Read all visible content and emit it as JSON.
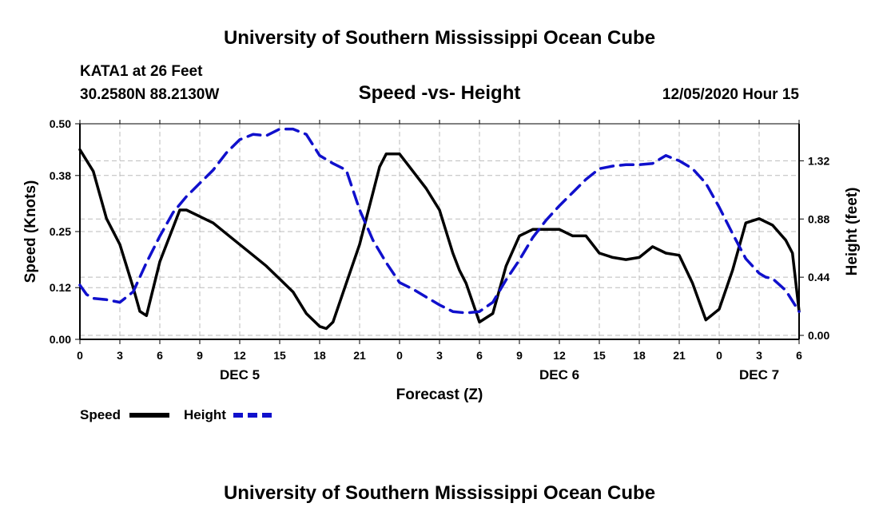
{
  "header": {
    "title_top": "University of Southern Mississippi Ocean Cube",
    "station": "KATA1 at 26 Feet",
    "coords": "30.2580N 88.2130W",
    "chart_title": "Speed -vs- Height",
    "datetime": "12/05/2020 Hour 15",
    "title_bottom": "University of Southern Mississippi Ocean Cube"
  },
  "colors": {
    "speed": "#000000",
    "height": "#1010cc",
    "grid": "#bbbbbb"
  },
  "chart_data": {
    "type": "line",
    "title": "Speed -vs- Height",
    "xlabel": "Forecast (Z)",
    "ylabel": "Speed (Knots)",
    "ylabel_right": "Height (feet)",
    "x_range": [
      0,
      54
    ],
    "x_tick_values": [
      0,
      3,
      6,
      9,
      12,
      15,
      18,
      21,
      24,
      27,
      30,
      33,
      36,
      39,
      42,
      45,
      48,
      51,
      54
    ],
    "x_tick_labels": [
      "0",
      "3",
      "6",
      "9",
      "12",
      "15",
      "18",
      "21",
      "0",
      "3",
      "6",
      "9",
      "12",
      "15",
      "18",
      "21",
      "0",
      "3",
      "6"
    ],
    "day_labels": [
      {
        "hour": 12,
        "text": "DEC 5"
      },
      {
        "hour": 36,
        "text": "DEC 6"
      },
      {
        "hour": 51,
        "text": "DEC 7"
      }
    ],
    "y_left": {
      "range": [
        0,
        0.5
      ],
      "ticks": [
        0.0,
        0.12,
        0.25,
        0.38,
        0.5
      ],
      "tick_labels": [
        "0.00",
        "0.12",
        "0.25",
        "0.38",
        "0.50"
      ]
    },
    "y_right": {
      "range": [
        -0.03,
        1.6
      ],
      "ticks": [
        0.0,
        0.44,
        0.88,
        1.32
      ],
      "tick_labels": [
        "0.00",
        "0.44",
        "0.88",
        "1.32"
      ]
    },
    "series": [
      {
        "name": "Speed",
        "axis": "left",
        "style": "solid",
        "x": [
          0,
          1,
          2,
          3,
          4,
          4.5,
          5,
          6,
          7,
          7.5,
          8,
          9,
          10,
          11,
          12,
          13,
          14,
          15,
          16,
          17,
          18,
          18.5,
          19,
          20,
          21,
          22,
          22.5,
          23,
          24,
          25,
          26,
          27,
          28,
          28.5,
          29,
          30,
          31,
          32,
          33,
          34,
          35,
          36,
          37,
          38,
          39,
          40,
          41,
          42,
          43,
          44,
          45,
          46,
          47,
          48,
          49,
          50,
          51,
          52,
          53,
          53.5,
          54
        ],
        "values": [
          0.44,
          0.39,
          0.28,
          0.22,
          0.12,
          0.065,
          0.055,
          0.18,
          0.26,
          0.3,
          0.3,
          0.285,
          0.27,
          0.245,
          0.22,
          0.195,
          0.17,
          0.14,
          0.11,
          0.06,
          0.03,
          0.025,
          0.04,
          0.13,
          0.22,
          0.34,
          0.4,
          0.43,
          0.43,
          0.39,
          0.35,
          0.3,
          0.2,
          0.16,
          0.13,
          0.04,
          0.06,
          0.17,
          0.24,
          0.255,
          0.255,
          0.255,
          0.24,
          0.24,
          0.2,
          0.19,
          0.185,
          0.19,
          0.215,
          0.2,
          0.195,
          0.13,
          0.045,
          0.07,
          0.16,
          0.27,
          0.28,
          0.265,
          0.23,
          0.2,
          0.065
        ]
      },
      {
        "name": "Height",
        "axis": "right",
        "style": "dashed",
        "x": [
          0,
          0.5,
          1,
          2,
          3,
          4,
          5,
          6,
          7,
          8,
          9,
          10,
          11,
          12,
          13,
          14,
          15,
          16,
          17,
          18,
          19,
          20,
          21,
          22,
          23,
          24,
          25,
          26,
          27,
          28,
          29,
          30,
          31,
          32,
          33,
          34,
          35,
          36,
          37,
          38,
          39,
          40,
          41,
          42,
          43,
          44,
          45,
          46,
          47,
          48,
          49,
          50,
          51,
          51.5,
          52,
          53,
          54
        ],
        "values": [
          0.38,
          0.31,
          0.28,
          0.27,
          0.25,
          0.33,
          0.55,
          0.75,
          0.93,
          1.05,
          1.15,
          1.25,
          1.38,
          1.48,
          1.52,
          1.51,
          1.56,
          1.56,
          1.52,
          1.36,
          1.3,
          1.25,
          0.95,
          0.72,
          0.55,
          0.4,
          0.35,
          0.29,
          0.23,
          0.18,
          0.17,
          0.18,
          0.25,
          0.42,
          0.57,
          0.74,
          0.87,
          0.98,
          1.08,
          1.18,
          1.26,
          1.28,
          1.29,
          1.29,
          1.3,
          1.36,
          1.32,
          1.26,
          1.15,
          0.97,
          0.77,
          0.58,
          0.47,
          0.44,
          0.43,
          0.34,
          0.18
        ]
      }
    ],
    "legend": {
      "position": "bottom-left",
      "items": [
        {
          "label": "Speed",
          "series": "Speed"
        },
        {
          "label": "Height",
          "series": "Height"
        }
      ]
    }
  }
}
